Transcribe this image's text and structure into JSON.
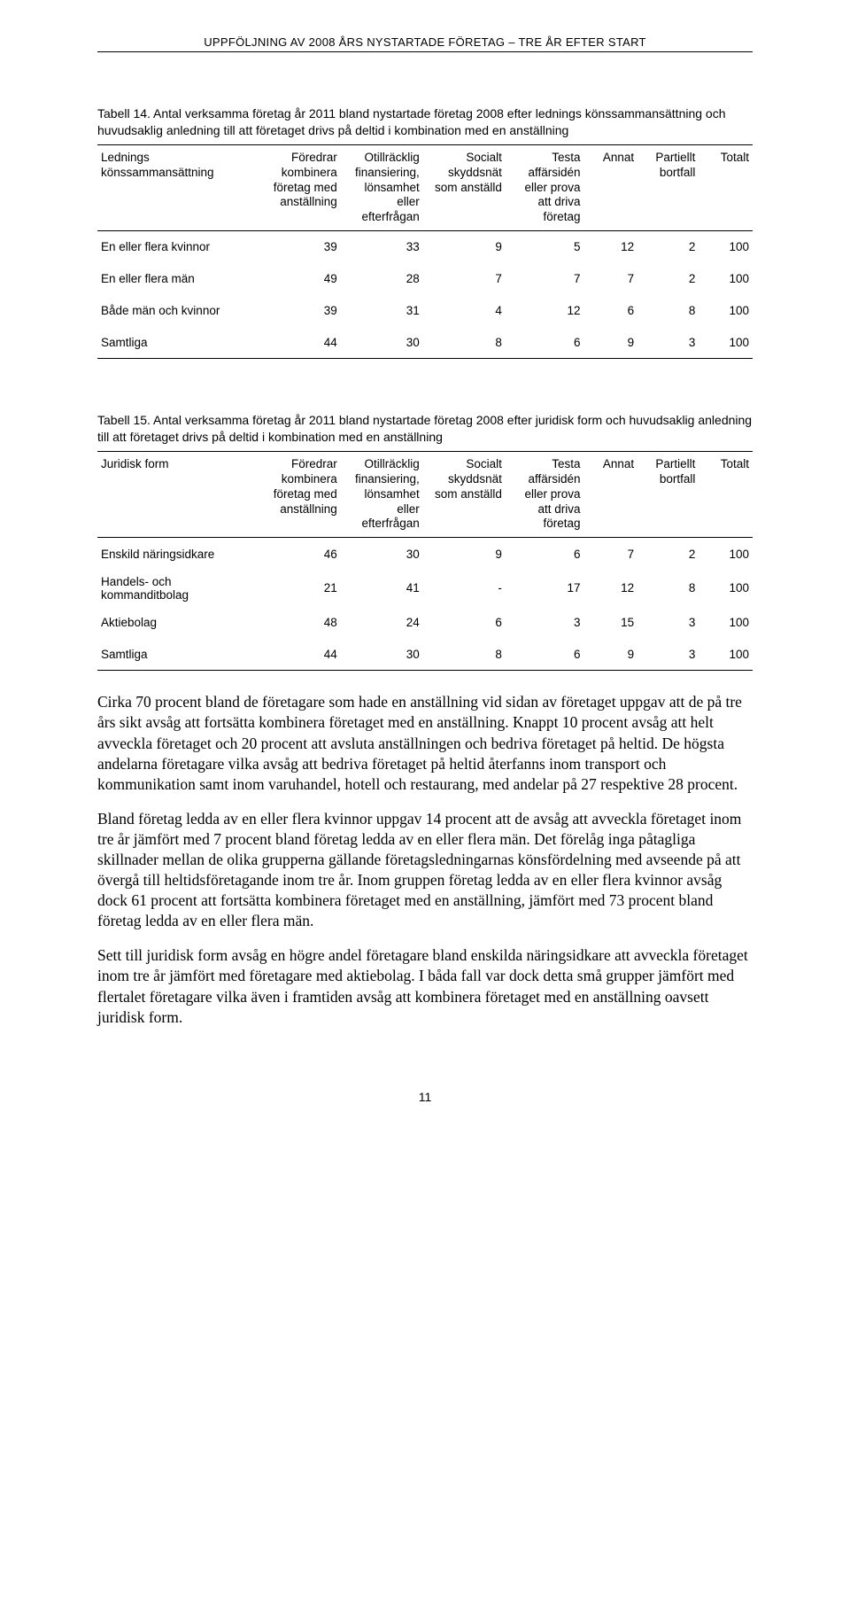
{
  "header": "UPPFÖLJNING AV 2008 ÅRS NYSTARTADE FÖRETAG – TRE ÅR EFTER START",
  "table14": {
    "caption": "Tabell 14. Antal verksamma företag år 2011 bland nystartade företag 2008 efter lednings könssammansättning och huvudsaklig anledning till att företaget drivs på deltid i kombination med en anställning",
    "columns": [
      "Lednings könssammansättning",
      "Föredrar kombinera företag med anställning",
      "Otillräcklig finansiering, lönsamhet eller efterfrågan",
      "Socialt skyddsnät som anställd",
      "Testa affärsidén eller prova att driva företag",
      "Annat",
      "Partiellt bortfall",
      "Totalt"
    ],
    "rows": [
      {
        "label": "En eller flera kvinnor",
        "v": [
          "39",
          "33",
          "9",
          "5",
          "12",
          "2",
          "100"
        ]
      },
      {
        "label": "En eller flera män",
        "v": [
          "49",
          "28",
          "7",
          "7",
          "7",
          "2",
          "100"
        ]
      },
      {
        "label": "Både män och kvinnor",
        "v": [
          "39",
          "31",
          "4",
          "12",
          "6",
          "8",
          "100"
        ]
      },
      {
        "label": "Samtliga",
        "v": [
          "44",
          "30",
          "8",
          "6",
          "9",
          "3",
          "100"
        ]
      }
    ]
  },
  "table15": {
    "caption": "Tabell 15. Antal verksamma företag år 2011 bland nystartade företag 2008 efter juridisk form och huvudsaklig anledning till att företaget drivs på deltid i kombination med en anställning",
    "columns": [
      "Juridisk form",
      "Föredrar kombinera företag med anställning",
      "Otillräcklig finansiering, lönsamhet eller efterfrågan",
      "Socialt skyddsnät som anställd",
      "Testa affärsidén eller prova att driva företag",
      "Annat",
      "Partiellt bortfall",
      "Totalt"
    ],
    "rows": [
      {
        "label": "Enskild näringsidkare",
        "v": [
          "46",
          "30",
          "9",
          "6",
          "7",
          "2",
          "100"
        ]
      },
      {
        "label": "Handels- och kommanditbolag",
        "v": [
          "21",
          "41",
          "-",
          "17",
          "12",
          "8",
          "100"
        ]
      },
      {
        "label": "Aktiebolag",
        "v": [
          "48",
          "24",
          "6",
          "3",
          "15",
          "3",
          "100"
        ]
      },
      {
        "label": "Samtliga",
        "v": [
          "44",
          "30",
          "8",
          "6",
          "9",
          "3",
          "100"
        ]
      }
    ]
  },
  "paragraphs": [
    "Cirka 70 procent bland de företagare som hade en anställning vid sidan av företaget uppgav att de på tre års sikt avsåg att fortsätta kombinera företaget med en anställning. Knappt 10 procent avsåg att helt avveckla företaget och 20 procent att avsluta anställningen och bedriva företaget på heltid. De högsta andelarna företagare vilka avsåg att bedriva företaget på heltid återfanns inom transport och kommunikation samt inom varuhandel, hotell och restaurang, med andelar på 27 respektive 28 procent.",
    "Bland företag ledda av en eller flera kvinnor uppgav 14 procent att de avsåg att avveckla företaget inom tre år jämfört med 7 procent bland företag ledda av en eller flera män. Det förelåg inga påtagliga skillnader mellan de olika grupperna gällande företagsledningarnas könsfördelning med avseende på att övergå till heltidsföretagande inom tre år. Inom gruppen företag ledda av en eller flera kvinnor avsåg dock 61 procent att fortsätta kombinera företaget med en anställning, jämfört med 73 procent bland företag ledda av en eller flera män.",
    "Sett till juridisk form avsåg en högre andel företagare bland enskilda näringsidkare att avveckla företaget inom tre år jämfört med företagare med aktiebolag. I båda fall var dock detta små grupper jämfört med flertalet företagare vilka även i framtiden avsåg att kombinera företaget med en anställning oavsett juridisk form."
  ],
  "pageNumber": "11",
  "style": {
    "colWidths": [
      "168px",
      "86px",
      "86px",
      "86px",
      "82px",
      "56px",
      "64px",
      "56px"
    ]
  }
}
